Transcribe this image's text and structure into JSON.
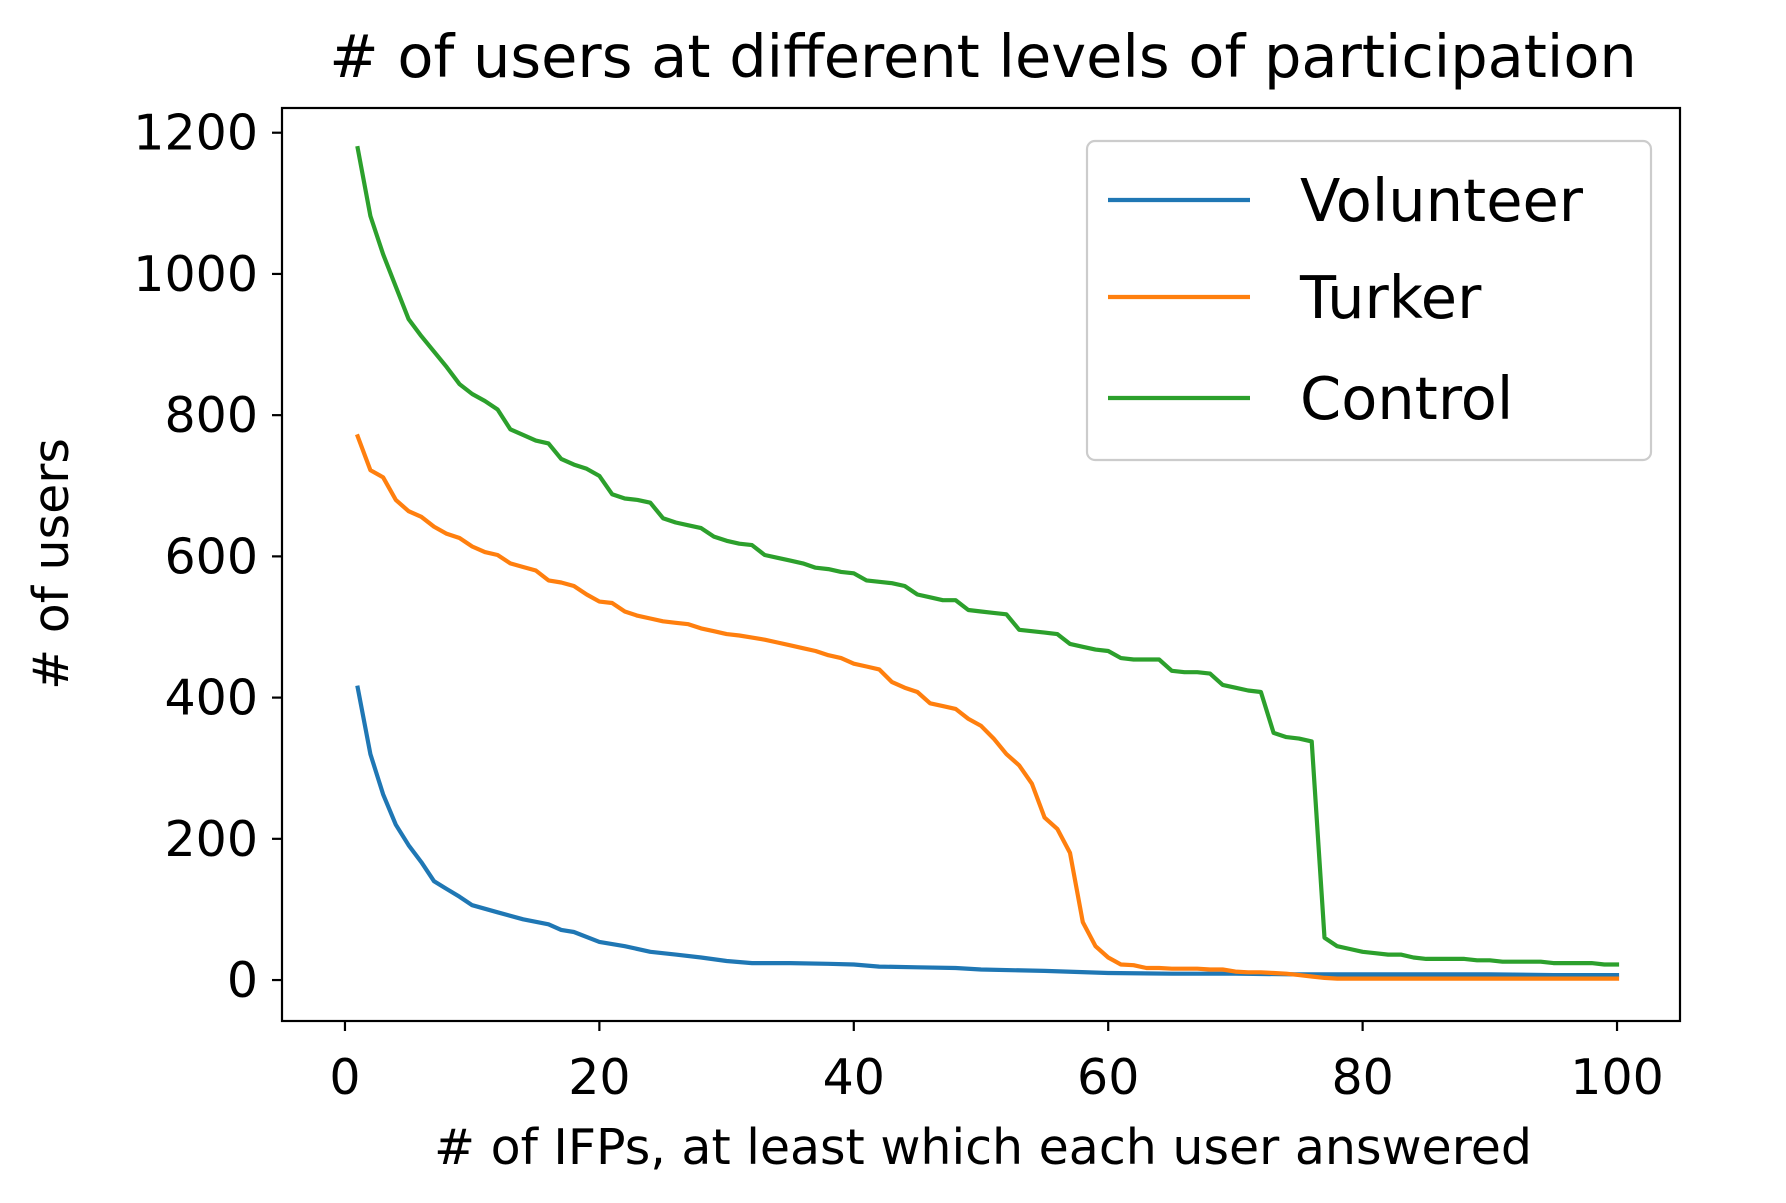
{
  "chart_data": {
    "type": "line",
    "title": "# of users at different levels of participation",
    "xlabel": "# of IFPs, at least which each user answered",
    "ylabel": "# of users",
    "xlim": [
      -4.95,
      104.95
    ],
    "ylim": [
      -58,
      1235
    ],
    "xticks": [
      0,
      20,
      40,
      60,
      80,
      100
    ],
    "yticks": [
      0,
      200,
      400,
      600,
      800,
      1000,
      1200
    ],
    "grid": false,
    "legend_position": "top-right",
    "series": [
      {
        "name": "Volunteer",
        "color": "#1f77b4",
        "x": [
          1,
          2,
          3,
          4,
          5,
          6,
          7,
          8,
          9,
          10,
          12,
          14,
          16,
          17,
          18,
          20,
          22,
          24,
          26,
          28,
          30,
          32,
          35,
          38,
          40,
          42,
          45,
          48,
          50,
          55,
          60,
          65,
          70,
          75,
          80,
          85,
          90,
          95,
          100
        ],
        "y": [
          414,
          320,
          263,
          220,
          191,
          167,
          140,
          129,
          118,
          106,
          96,
          86,
          79,
          71,
          68,
          54,
          48,
          40,
          36,
          32,
          27,
          24,
          24,
          23,
          22,
          19,
          18,
          17,
          15,
          13,
          10,
          9,
          9,
          8,
          8,
          8,
          8,
          7,
          7
        ]
      },
      {
        "name": "Turker",
        "color": "#ff7f0e",
        "x": [
          1,
          2,
          3,
          4,
          5,
          6,
          7,
          8,
          9,
          10,
          11,
          12,
          13,
          14,
          15,
          16,
          17,
          18,
          19,
          20,
          21,
          22,
          23,
          24,
          25,
          26,
          27,
          28,
          29,
          30,
          31,
          32,
          33,
          34,
          35,
          36,
          37,
          38,
          39,
          40,
          41,
          42,
          43,
          44,
          45,
          46,
          47,
          48,
          49,
          50,
          51,
          52,
          53,
          54,
          55,
          56,
          57,
          58,
          59,
          60,
          61,
          62,
          63,
          64,
          65,
          66,
          67,
          68,
          69,
          70,
          71,
          72,
          73,
          74,
          75,
          76,
          77,
          78,
          80,
          85,
          90,
          95,
          100
        ],
        "y": [
          770,
          722,
          712,
          680,
          664,
          656,
          642,
          632,
          626,
          614,
          606,
          602,
          590,
          585,
          580,
          566,
          563,
          558,
          546,
          536,
          534,
          522,
          516,
          512,
          508,
          506,
          504,
          498,
          494,
          490,
          488,
          485,
          482,
          478,
          474,
          470,
          466,
          460,
          456,
          448,
          444,
          440,
          422,
          414,
          408,
          392,
          388,
          384,
          370,
          360,
          342,
          320,
          304,
          278,
          230,
          214,
          180,
          82,
          48,
          32,
          22,
          21,
          17,
          17,
          16,
          16,
          16,
          15,
          15,
          12,
          11,
          11,
          10,
          9,
          7,
          5,
          3,
          2,
          2,
          2,
          2,
          2,
          2
        ]
      },
      {
        "name": "Control",
        "color": "#2ca02c",
        "x": [
          1,
          2,
          3,
          4,
          5,
          6,
          7,
          8,
          9,
          10,
          11,
          12,
          13,
          14,
          15,
          16,
          17,
          18,
          19,
          20,
          21,
          22,
          23,
          24,
          25,
          26,
          27,
          28,
          29,
          30,
          31,
          32,
          33,
          34,
          35,
          36,
          37,
          38,
          39,
          40,
          41,
          42,
          43,
          44,
          45,
          46,
          47,
          48,
          49,
          50,
          51,
          52,
          53,
          54,
          55,
          56,
          57,
          58,
          59,
          60,
          61,
          62,
          63,
          64,
          65,
          66,
          67,
          68,
          69,
          70,
          71,
          72,
          73,
          74,
          75,
          76,
          77,
          78,
          79,
          80,
          81,
          82,
          83,
          84,
          85,
          86,
          87,
          88,
          89,
          90,
          91,
          92,
          93,
          94,
          95,
          96,
          97,
          98,
          99,
          100
        ],
        "y": [
          1178,
          1082,
          1028,
          982,
          936,
          912,
          890,
          868,
          844,
          830,
          820,
          808,
          780,
          772,
          764,
          760,
          738,
          730,
          724,
          714,
          688,
          682,
          680,
          676,
          654,
          648,
          644,
          640,
          628,
          622,
          618,
          616,
          602,
          598,
          594,
          590,
          584,
          582,
          578,
          576,
          566,
          564,
          562,
          558,
          546,
          542,
          538,
          538,
          524,
          522,
          520,
          518,
          496,
          494,
          492,
          490,
          476,
          472,
          468,
          466,
          456,
          454,
          454,
          454,
          438,
          436,
          436,
          434,
          418,
          414,
          410,
          408,
          350,
          344,
          342,
          338,
          60,
          48,
          44,
          40,
          38,
          36,
          36,
          32,
          30,
          30,
          30,
          30,
          28,
          28,
          26,
          26,
          26,
          26,
          24,
          24,
          24,
          24,
          22,
          22
        ]
      }
    ]
  }
}
